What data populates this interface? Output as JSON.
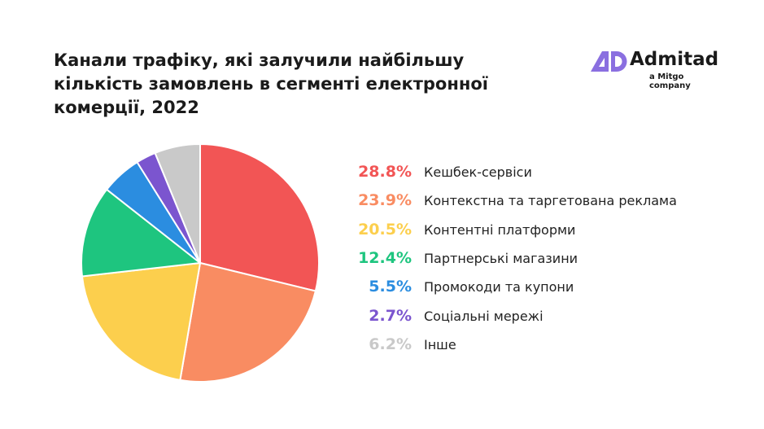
{
  "logo": {
    "brand": "Admitad",
    "subtitle": "a Mitgo company",
    "accent": "#8a6fe0"
  },
  "chart_data": {
    "type": "pie",
    "title": "Канали трафіку, які залучили найбільшу кількість замовлень в сегменті електронної комерції, 2022",
    "slices": [
      {
        "label": "Кешбек-сервіси",
        "value": 28.8,
        "display": "28.8%",
        "color": "#f25555"
      },
      {
        "label": "Контекстна та таргетована реклама",
        "value": 23.9,
        "display": "23.9%",
        "color": "#f98c62"
      },
      {
        "label": "Контентні платформи",
        "value": 20.5,
        "display": "20.5%",
        "color": "#fccf4d"
      },
      {
        "label": "Партнерські магазини",
        "value": 12.4,
        "display": "12.4%",
        "color": "#1ec57f"
      },
      {
        "label": "Промокоди та купони",
        "value": 5.5,
        "display": "5.5%",
        "color": "#2b8de0"
      },
      {
        "label": "Соціальні мережі",
        "value": 2.7,
        "display": "2.7%",
        "color": "#7b55cf"
      },
      {
        "label": "Інше",
        "value": 6.2,
        "display": "6.2%",
        "color": "#c9c9c9"
      }
    ],
    "legend_position": "right"
  }
}
